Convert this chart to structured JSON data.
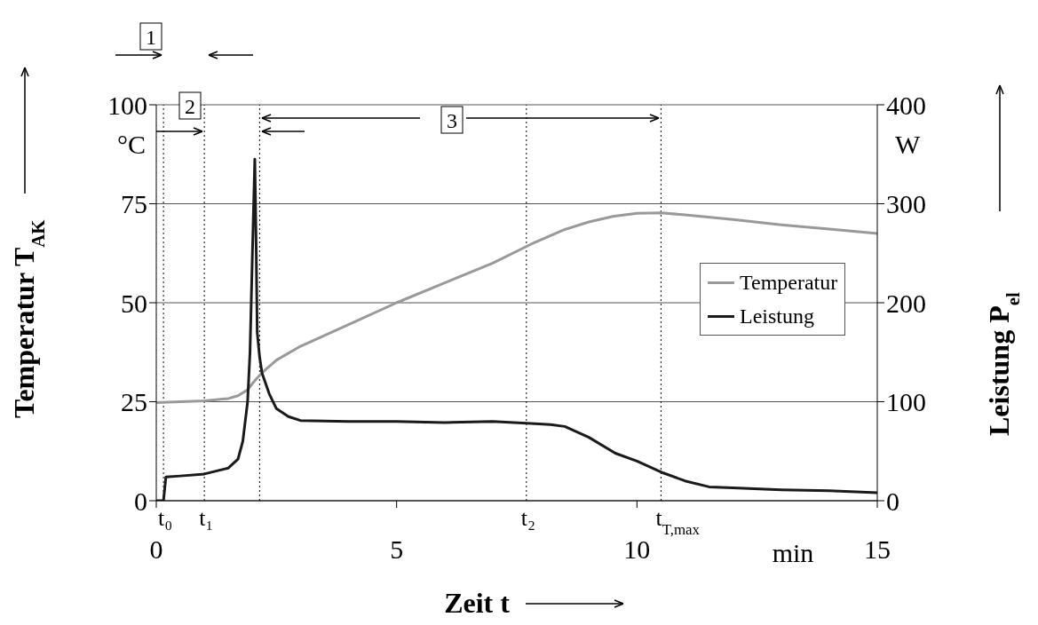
{
  "chart_data": {
    "type": "line",
    "xlabel": "Zeit t",
    "ylabel": "Temperatur T$_{AK}$",
    "y2label": "Leistung P$_{el}$",
    "xlim": [
      0,
      15
    ],
    "xticks": [
      0,
      5,
      10,
      15
    ],
    "ylim": [
      0,
      100
    ],
    "yticks": [
      0,
      25,
      50,
      75,
      100
    ],
    "y2lim": [
      0,
      400
    ],
    "y2ticks": [
      0,
      100,
      200,
      300,
      400
    ],
    "grid": "y",
    "legend": "right",
    "marker": "none",
    "line_style": "solid",
    "series": [
      {
        "name": "Temperatur",
        "color": "#999999",
        "x": [
          0,
          0.5,
          1,
          1.5,
          1.7,
          1.9,
          2,
          2.1,
          2.2,
          2.5,
          3,
          4,
          5,
          6,
          7,
          7.8,
          8.5,
          9,
          9.5,
          10,
          10.5,
          11,
          12,
          13,
          14,
          15
        ],
        "values": [
          24.8,
          25,
          25.2,
          25.8,
          26.5,
          28,
          29.6,
          31,
          32.3,
          35.5,
          39,
          44.5,
          50,
          55,
          60,
          64.8,
          68.5,
          70.4,
          71.8,
          72.6,
          72.7,
          72.2,
          71,
          69.7,
          68.6,
          67.5
        ]
      },
      {
        "name": "Leistung",
        "color": "#1a1a1a",
        "axis": "y2",
        "x": [
          0,
          0.15,
          0.2,
          0.5,
          1,
          1.5,
          1.7,
          1.8,
          1.9,
          1.95,
          2,
          2.05,
          2.08,
          2.1,
          2.15,
          2.2,
          2.35,
          2.5,
          2.75,
          3,
          4,
          5,
          6,
          7,
          7.8,
          8.2,
          8.5,
          9,
          9.55,
          10,
          10.55,
          11,
          11.5,
          12,
          13,
          14,
          15
        ],
        "values": [
          0,
          0,
          24,
          25,
          27,
          33,
          42,
          60,
          100,
          150,
          250,
          345,
          250,
          170,
          145,
          129,
          108,
          93,
          85,
          81,
          80,
          80,
          79,
          80,
          78,
          77,
          75,
          64,
          48,
          40,
          28,
          20,
          14,
          13,
          11,
          10,
          8
        ]
      }
    ],
    "ref_lines": [
      {
        "axis": "x",
        "value": 0.15,
        "label": "t₀",
        "line_style": "dotted",
        "color": "#000000"
      },
      {
        "axis": "x",
        "value": 1,
        "label": "t₁",
        "line_style": "dotted",
        "color": "#000000"
      },
      {
        "axis": "x",
        "value": 2.15,
        "line_style": "dotted",
        "color": "#000000"
      },
      {
        "axis": "x",
        "value": 7.7,
        "label": "t₂",
        "line_style": "dotted",
        "color": "#000000"
      },
      {
        "axis": "x",
        "value": 10.5,
        "label": "t$_{T,max}$",
        "line_style": "dotted",
        "color": "#000000"
      }
    ],
    "annotations": [
      "1",
      "2",
      "3",
      "°C",
      "W",
      "min"
    ]
  }
}
